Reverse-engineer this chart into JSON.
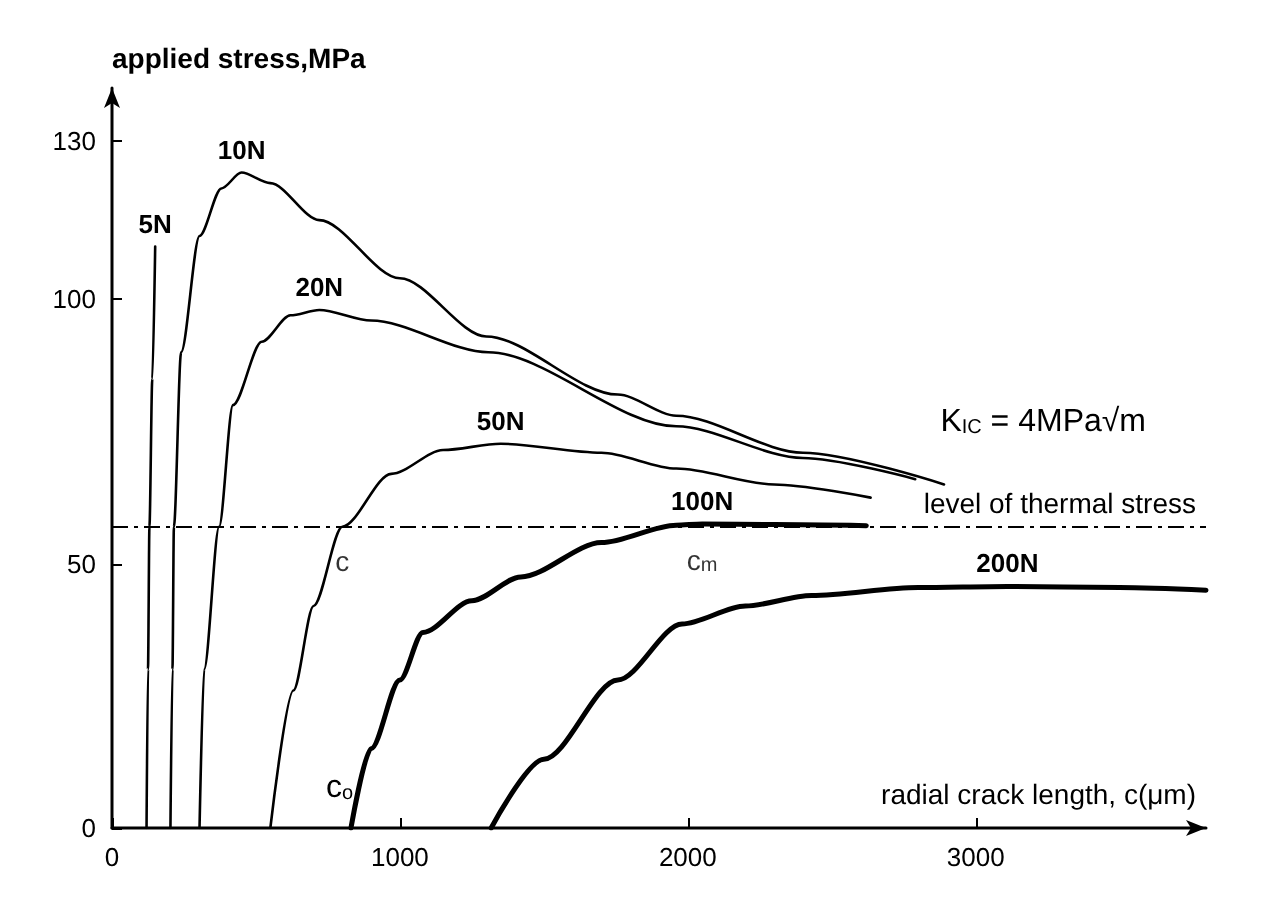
{
  "chart_data": {
    "type": "line",
    "xlabel": "radial crack length, c(μm)",
    "ylabel": "applied stress,MPa",
    "xlim": [
      0,
      3800
    ],
    "xticks": [
      0,
      1000,
      2000,
      3000
    ],
    "ylim": [
      0,
      140
    ],
    "yticks": [
      0,
      50,
      100,
      130
    ],
    "grid": false,
    "legend": false,
    "marker": "none",
    "line_style": "solid",
    "series": [
      {
        "name": "5N",
        "color": "#000000",
        "x": [
          120,
          125,
          130,
          140,
          150
        ],
        "values": [
          0,
          30,
          57,
          85,
          110
        ]
      },
      {
        "name": "10N",
        "color": "#000000",
        "x": [
          203,
          210,
          215,
          240,
          304,
          380,
          450,
          550,
          720,
          1000,
          1300,
          1757,
          1960,
          2400,
          2890
        ],
        "values": [
          0,
          30,
          57,
          90,
          112,
          121,
          124,
          122,
          115,
          104,
          93,
          82,
          78,
          71,
          65
        ]
      },
      {
        "name": "20N",
        "color": "#000000",
        "x": [
          304,
          320,
          372,
          420,
          520,
          620,
          720,
          900,
          1307,
          1960,
          2400,
          2790
        ],
        "values": [
          0,
          30,
          57,
          80,
          92,
          97,
          98,
          96,
          90,
          76,
          70,
          66
        ]
      },
      {
        "name": "50N",
        "color": "#000000",
        "x": [
          550,
          630,
          700,
          800,
          970,
          1150,
          1350,
          1700,
          1960,
          2300,
          2635
        ],
        "values": [
          0,
          26,
          42,
          57,
          67,
          71.5,
          72.7,
          71,
          68,
          65,
          62.5
        ]
      },
      {
        "name": "100N",
        "color": "#000000",
        "x": [
          830,
          900,
          1000,
          1080,
          1250,
          1420,
          1700,
          1960,
          2050,
          2300,
          2620
        ],
        "values": [
          0,
          15,
          28,
          37,
          43,
          47.5,
          54,
          57.3,
          57.5,
          57.4,
          57.2
        ]
      },
      {
        "name": "200N",
        "color": "#000000",
        "x": [
          1317,
          1500,
          1757,
          1980,
          2200,
          2430,
          2800,
          3110,
          3500,
          3800
        ],
        "values": [
          0,
          13,
          28,
          38.6,
          42,
          44,
          45.5,
          45.7,
          45.5,
          45
        ]
      }
    ],
    "ref_lines": [
      {
        "axis": "y",
        "value": 57,
        "label": "level of thermal stress",
        "color": "#000000",
        "line_style": "dashed"
      }
    ],
    "annotations": [
      {
        "text": "c",
        "x": 800,
        "y": 57
      },
      {
        "text": "c$_{m}$",
        "x": 2050,
        "y": 57.5
      },
      "c$_{o}$",
      "K$_{IC}$ = 4MPa√m"
    ]
  }
}
